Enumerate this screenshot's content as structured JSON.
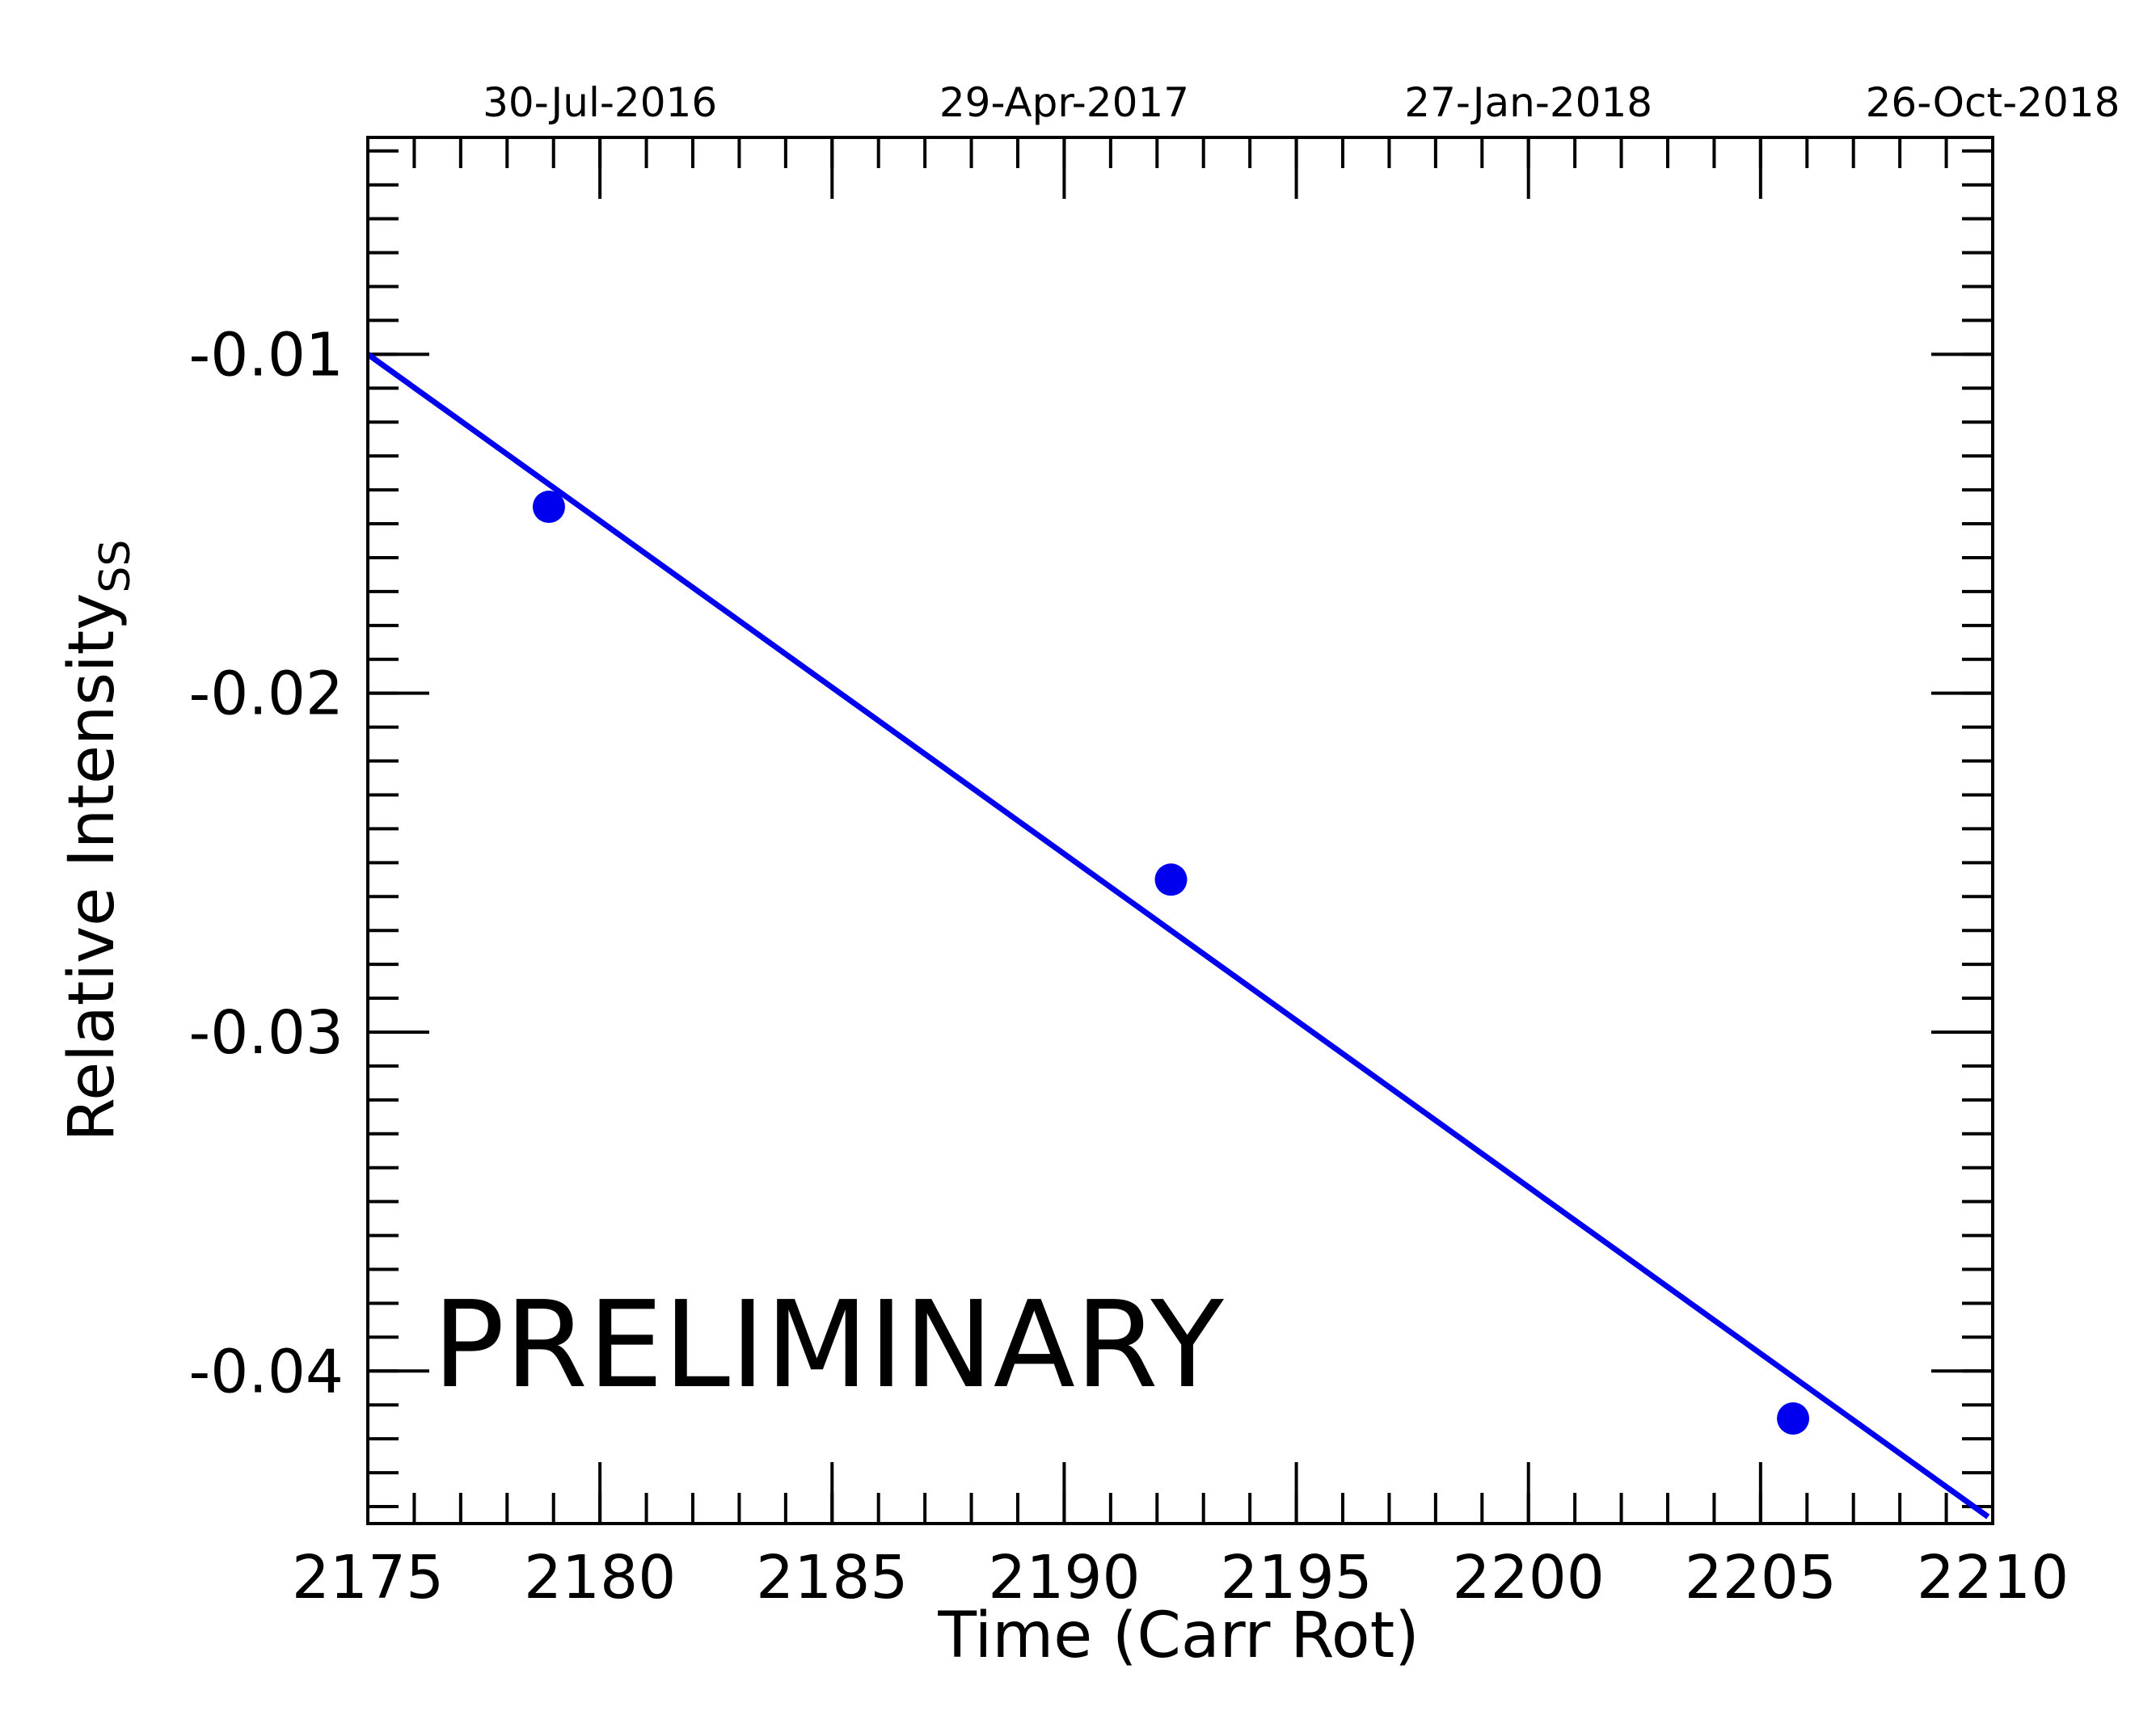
{
  "chart_data": {
    "type": "scatter",
    "xlabel": "Time (Carr Rot)",
    "ylabel": "Relative Intensity",
    "ylabel_subscript": "SS",
    "xlim": [
      2175,
      2210
    ],
    "ylim": [
      -0.0445,
      -0.0036
    ],
    "x_ticks": [
      2175,
      2180,
      2185,
      2190,
      2195,
      2200,
      2205,
      2210
    ],
    "x_tick_labels": [
      "2175",
      "2180",
      "2185",
      "2190",
      "2195",
      "2200",
      "2205",
      "2210"
    ],
    "x_minor_step": 1,
    "y_ticks": [
      -0.01,
      -0.02,
      -0.03,
      -0.04
    ],
    "y_tick_labels": [
      "-0.01",
      "-0.02",
      "-0.03",
      "-0.04"
    ],
    "y_minor_step": 0.001,
    "top_axis": {
      "ticks": [
        2180,
        2190,
        2200,
        2210
      ],
      "labels": [
        "30-Jul-2016",
        "29-Apr-2017",
        "27-Jan-2018",
        "26-Oct-2018"
      ]
    },
    "points": [
      {
        "x": 2178.9,
        "y": -0.0145
      },
      {
        "x": 2192.3,
        "y": -0.0255
      },
      {
        "x": 2205.7,
        "y": -0.0414
      }
    ],
    "fit_line": {
      "x": [
        2175,
        2209.9
      ],
      "y": [
        -0.01,
        -0.0443
      ]
    },
    "color": "#0000ee",
    "grid": false,
    "annotation": "PRELIMINARY"
  }
}
